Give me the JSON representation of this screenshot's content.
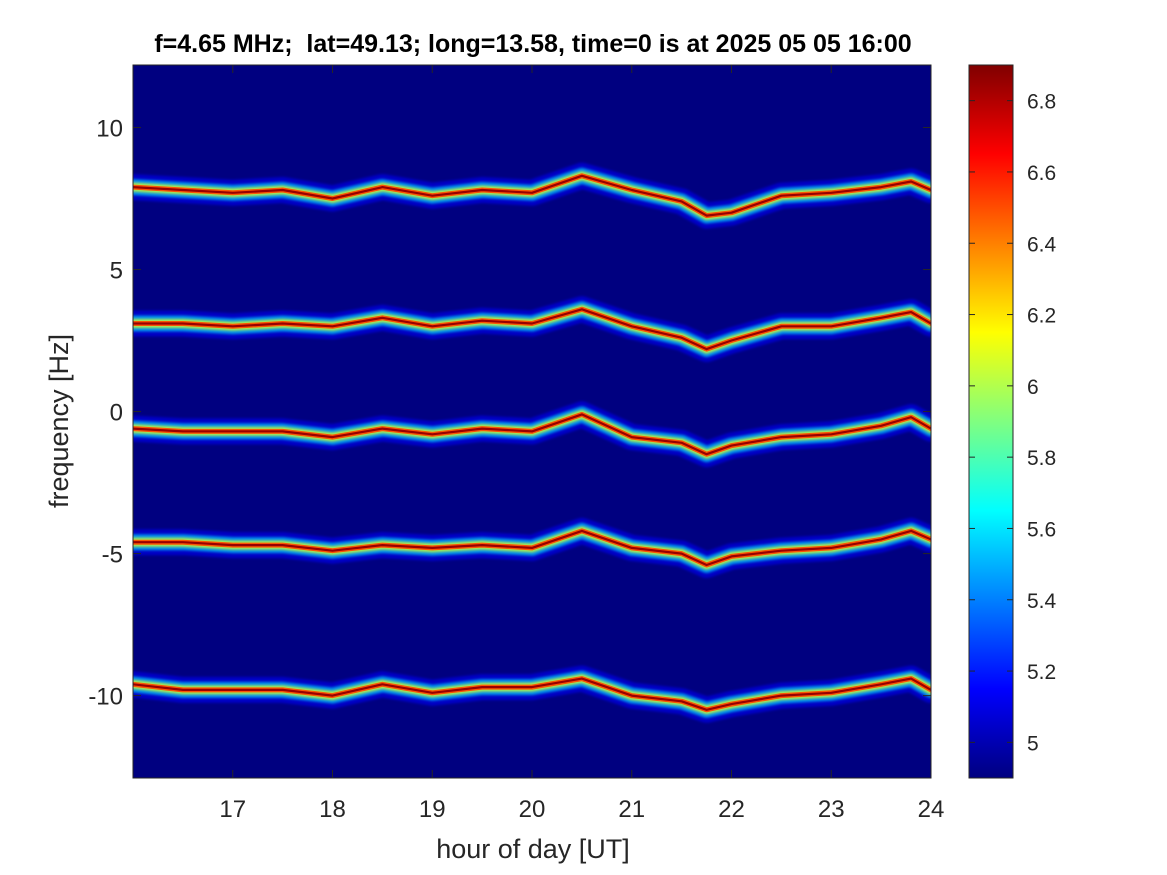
{
  "chart_data": {
    "type": "heatmap",
    "title": "f=4.65 MHz;  lat=49.13; long=13.58, time=0 is at 2025 05 05 16:00",
    "xlabel": "hour of day [UT]",
    "ylabel": "frequency [Hz]",
    "xlim": [
      16,
      24
    ],
    "ylim": [
      -12.9,
      12.2
    ],
    "x_ticks": [
      17,
      18,
      19,
      20,
      21,
      22,
      23,
      24
    ],
    "x_tick_labels": [
      "17",
      "18",
      "19",
      "20",
      "21",
      "22",
      "23",
      "24"
    ],
    "y_ticks": [
      10,
      5,
      0,
      -5,
      -10
    ],
    "y_tick_labels": [
      "10",
      "5",
      "0",
      "-5",
      "-10"
    ],
    "background_value": 4.9,
    "colorbar": {
      "colormap": "jet",
      "clim": [
        4.9,
        6.9
      ],
      "ticks": [
        6.8,
        6.6,
        6.4,
        6.2,
        6.0,
        5.8,
        5.6,
        5.4,
        5.2,
        5.0
      ],
      "tick_labels": [
        "6.8",
        "6.6",
        "6.4",
        "6.2",
        "6",
        "5.8",
        "5.6",
        "5.4",
        "5.2",
        "5"
      ]
    },
    "series": [
      {
        "x": [
          16.0,
          16.5,
          17.0,
          17.5,
          18.0,
          18.5,
          19.0,
          19.5,
          20.0,
          20.5,
          21.0,
          21.5,
          21.75,
          22.0,
          22.5,
          23.0,
          23.5,
          23.8,
          24.0
        ],
        "values": [
          7.9,
          7.8,
          7.7,
          7.8,
          7.5,
          7.9,
          7.6,
          7.8,
          7.7,
          8.3,
          7.8,
          7.4,
          6.9,
          7.0,
          7.6,
          7.7,
          7.9,
          8.1,
          7.8
        ]
      },
      {
        "x": [
          16.0,
          16.5,
          17.0,
          17.5,
          18.0,
          18.5,
          19.0,
          19.5,
          20.0,
          20.5,
          21.0,
          21.5,
          21.75,
          22.0,
          22.5,
          23.0,
          23.5,
          23.8,
          24.0
        ],
        "values": [
          3.1,
          3.1,
          3.0,
          3.1,
          3.0,
          3.3,
          3.0,
          3.2,
          3.1,
          3.6,
          3.0,
          2.6,
          2.2,
          2.5,
          3.0,
          3.0,
          3.3,
          3.5,
          3.1
        ]
      },
      {
        "x": [
          16.0,
          16.5,
          17.0,
          17.5,
          18.0,
          18.5,
          19.0,
          19.5,
          20.0,
          20.5,
          21.0,
          21.5,
          21.75,
          22.0,
          22.5,
          23.0,
          23.5,
          23.8,
          24.0
        ],
        "values": [
          -0.6,
          -0.7,
          -0.7,
          -0.7,
          -0.9,
          -0.6,
          -0.8,
          -0.6,
          -0.7,
          -0.1,
          -0.9,
          -1.1,
          -1.5,
          -1.2,
          -0.9,
          -0.8,
          -0.5,
          -0.2,
          -0.6
        ]
      },
      {
        "x": [
          16.0,
          16.5,
          17.0,
          17.5,
          18.0,
          18.5,
          19.0,
          19.5,
          20.0,
          20.5,
          21.0,
          21.5,
          21.75,
          22.0,
          22.5,
          23.0,
          23.5,
          23.8,
          24.0
        ],
        "values": [
          -4.6,
          -4.6,
          -4.7,
          -4.7,
          -4.9,
          -4.7,
          -4.8,
          -4.7,
          -4.8,
          -4.2,
          -4.8,
          -5.0,
          -5.4,
          -5.1,
          -4.9,
          -4.8,
          -4.5,
          -4.2,
          -4.5
        ]
      },
      {
        "x": [
          16.0,
          16.5,
          17.0,
          17.5,
          18.0,
          18.5,
          19.0,
          19.5,
          20.0,
          20.5,
          21.0,
          21.5,
          21.75,
          22.0,
          22.5,
          23.0,
          23.5,
          23.8,
          24.0
        ],
        "values": [
          -9.6,
          -9.8,
          -9.8,
          -9.8,
          -10.0,
          -9.6,
          -9.9,
          -9.7,
          -9.7,
          -9.4,
          -10.0,
          -10.2,
          -10.5,
          -10.3,
          -10.0,
          -9.9,
          -9.6,
          -9.4,
          -9.8
        ]
      }
    ]
  }
}
